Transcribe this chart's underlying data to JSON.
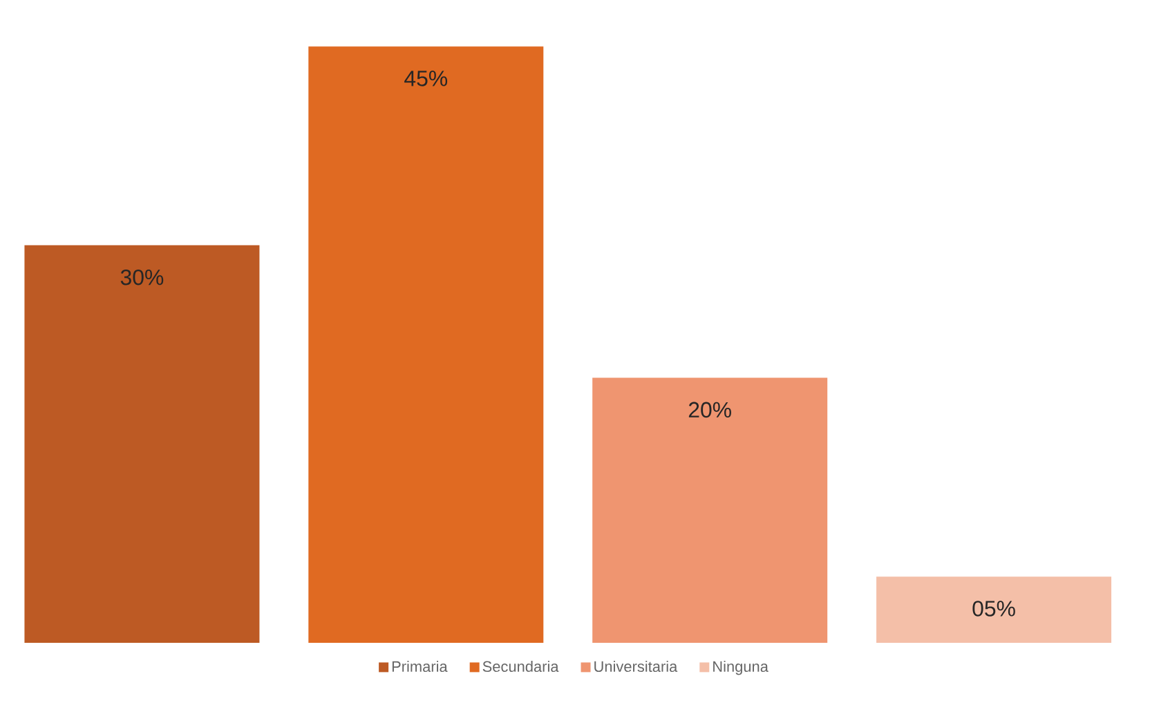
{
  "chart_data": {
    "type": "bar",
    "categories": [
      null
    ],
    "legend": "bottom",
    "series": [
      {
        "name": "Primaria",
        "color": "#bd5a24",
        "values": [
          30
        ],
        "value_labels": [
          "30%"
        ]
      },
      {
        "name": "Secundaria",
        "color": "#e06a22",
        "values": [
          45
        ],
        "value_labels": [
          "45%"
        ]
      },
      {
        "name": "Universitaria",
        "color": "#ef9570",
        "values": [
          20
        ],
        "value_labels": [
          "20%"
        ]
      },
      {
        "name": "Ninguna",
        "color": "#f4bfa8",
        "values": [
          5
        ],
        "value_labels": [
          "05%"
        ]
      }
    ]
  }
}
